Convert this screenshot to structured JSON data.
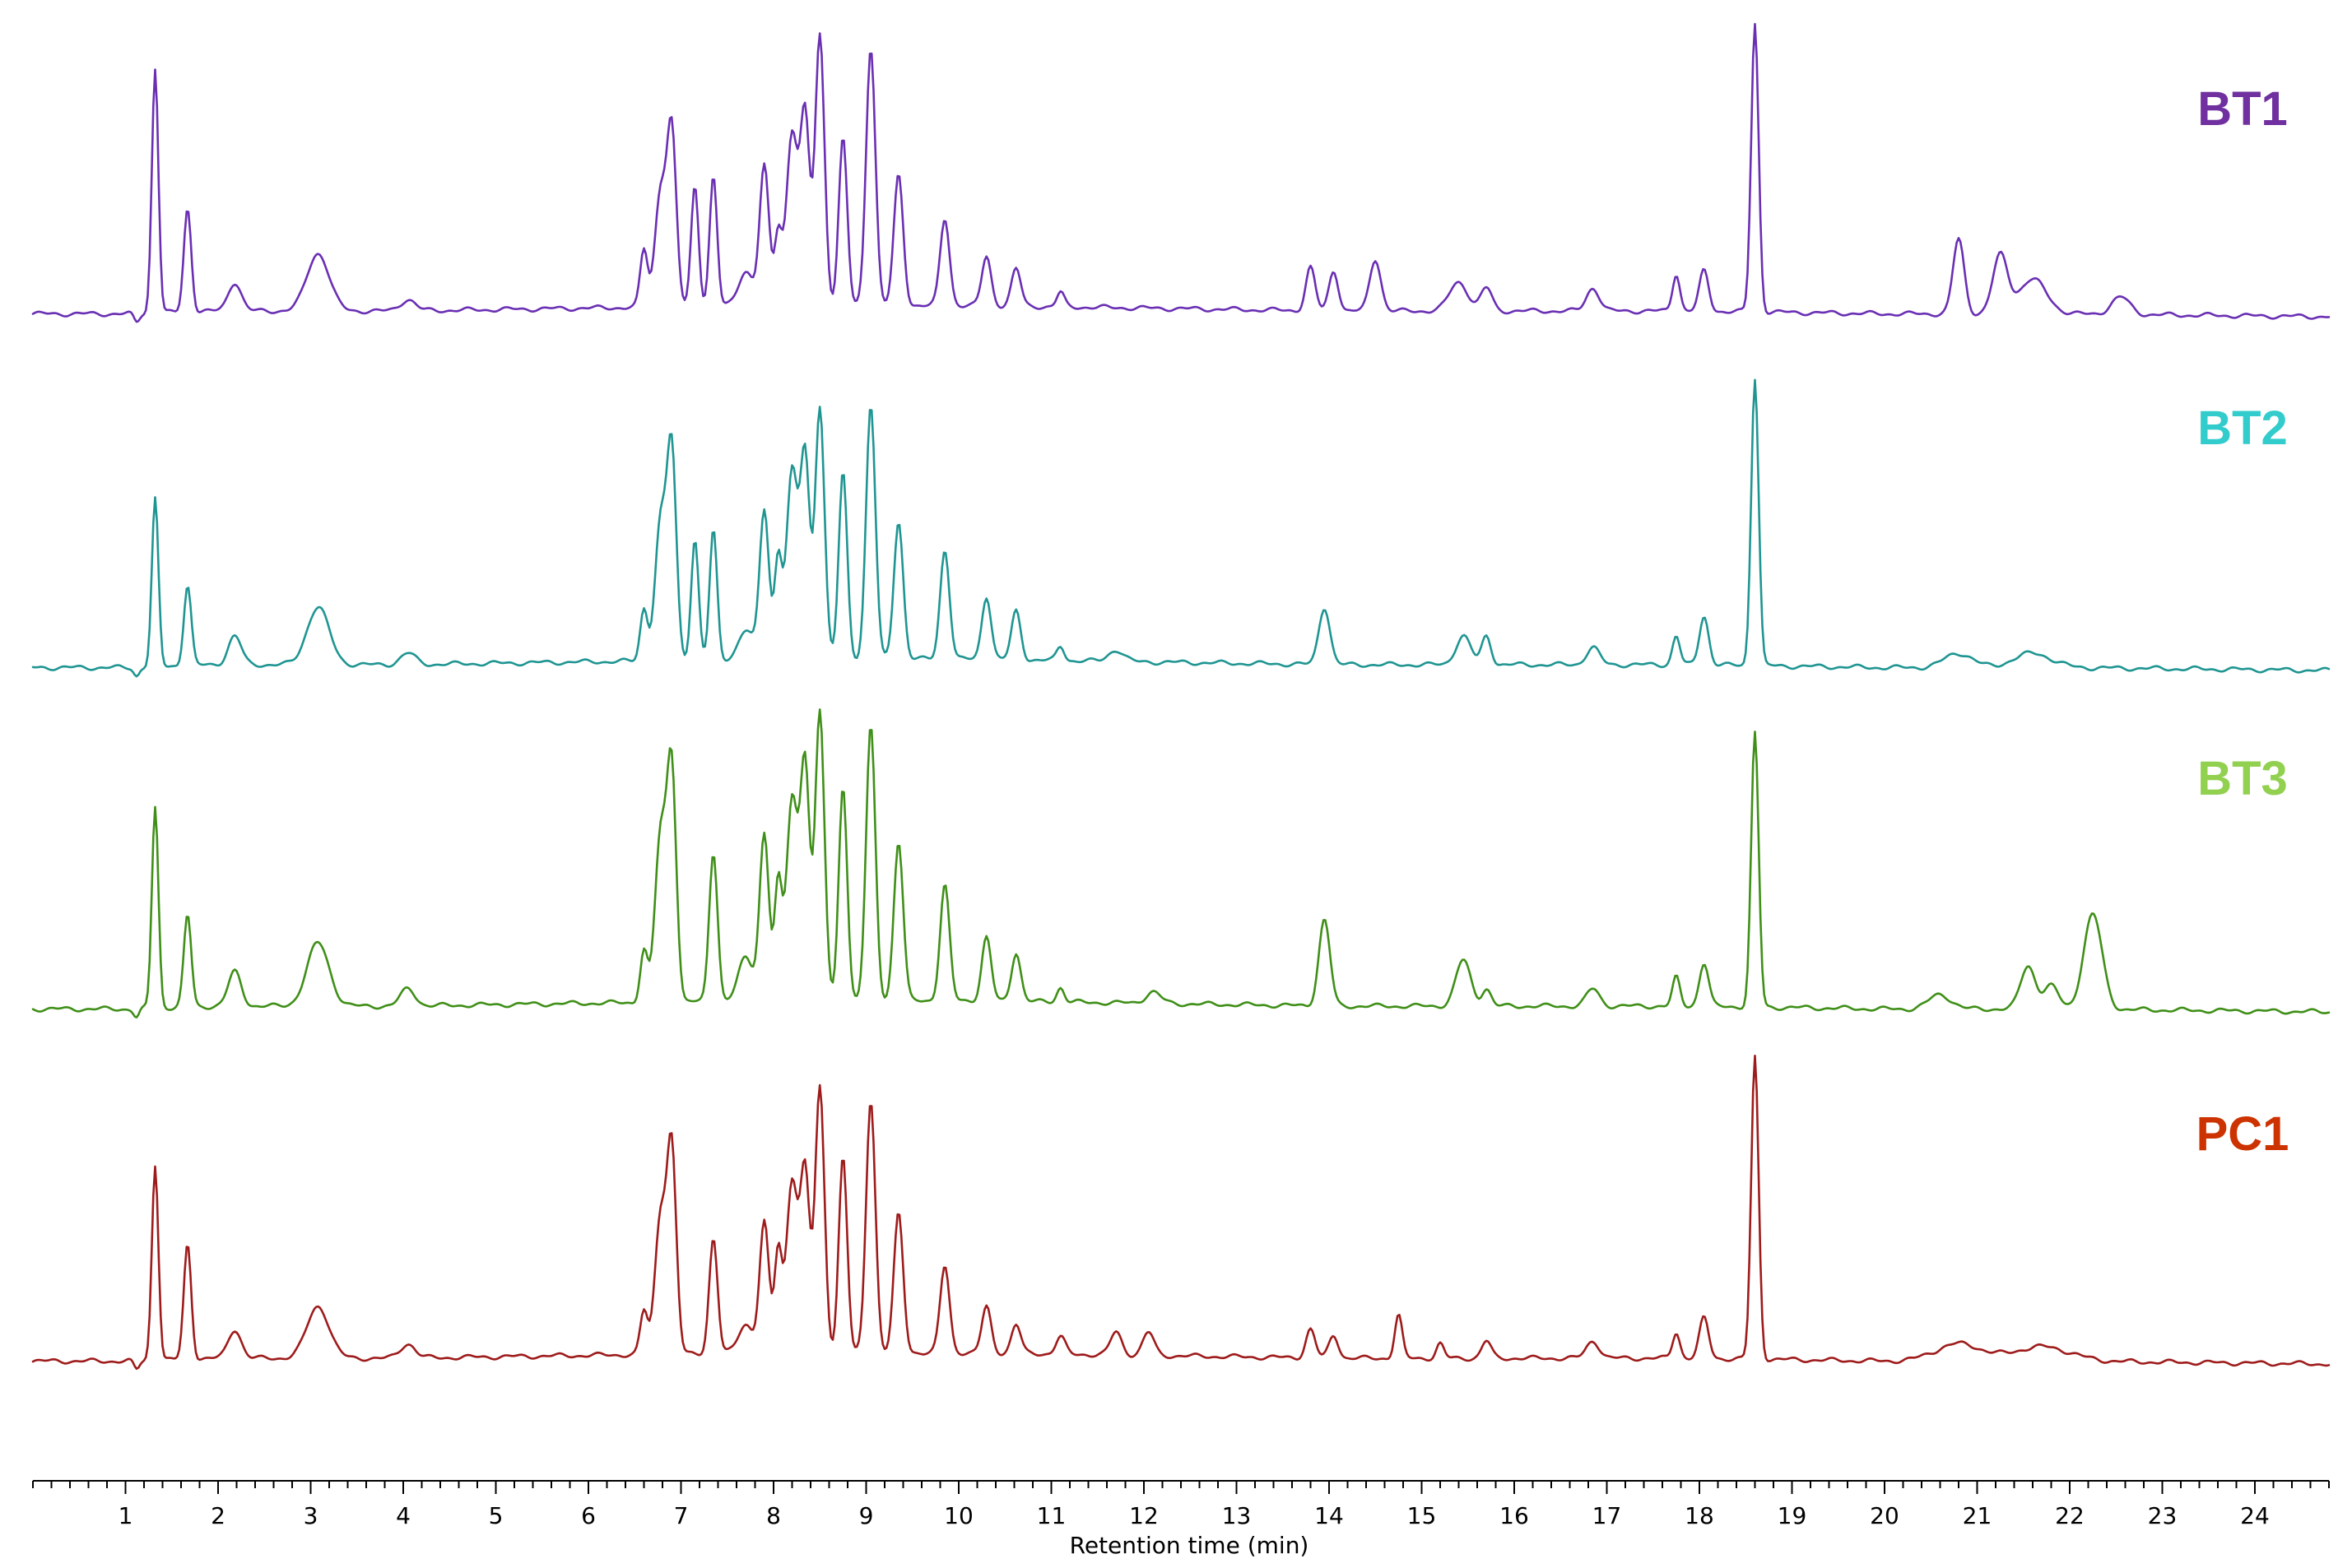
{
  "chart_data": {
    "type": "line",
    "xlabel": "Retention time (min)",
    "ylabel": "",
    "xlim": [
      0,
      24.8
    ],
    "ylim": [
      0,
      100
    ],
    "x_ticks": [
      1,
      2,
      3,
      4,
      5,
      6,
      7,
      8,
      9,
      10,
      11,
      12,
      13,
      14,
      15,
      16,
      17,
      18,
      19,
      20,
      21,
      22,
      23,
      24
    ],
    "minor_tick_step": 0.2,
    "grid": false,
    "legend": "series labels at top-right of each trace",
    "baseline": [
      [
        0,
        3
      ],
      [
        1,
        3
      ],
      [
        2,
        4
      ],
      [
        4,
        4
      ],
      [
        6,
        5
      ],
      [
        8,
        6
      ],
      [
        10,
        6
      ],
      [
        12,
        5
      ],
      [
        14,
        4
      ],
      [
        16,
        4
      ],
      [
        18,
        4
      ],
      [
        20,
        3
      ],
      [
        22,
        3
      ],
      [
        24.8,
        2
      ]
    ],
    "series": [
      {
        "name": "BT1",
        "color": "#6a2fb3",
        "label_color": "#7030a0",
        "peaks": [
          [
            1.32,
            85,
            0.035
          ],
          [
            1.67,
            36,
            0.04
          ],
          [
            2.18,
            10,
            0.07
          ],
          [
            3.08,
            20,
            0.12
          ],
          [
            4.05,
            4,
            0.08
          ],
          [
            6.6,
            20,
            0.04
          ],
          [
            6.78,
            40,
            0.06
          ],
          [
            6.9,
            60,
            0.05
          ],
          [
            7.15,
            42,
            0.04
          ],
          [
            7.35,
            45,
            0.04
          ],
          [
            7.7,
            12,
            0.08
          ],
          [
            7.9,
            48,
            0.05
          ],
          [
            8.05,
            25,
            0.04
          ],
          [
            8.2,
            60,
            0.06
          ],
          [
            8.34,
            65,
            0.05
          ],
          [
            8.5,
            94,
            0.05
          ],
          [
            8.75,
            58,
            0.045
          ],
          [
            9.05,
            90,
            0.05
          ],
          [
            9.35,
            45,
            0.05
          ],
          [
            9.85,
            30,
            0.05
          ],
          [
            10.3,
            17,
            0.05
          ],
          [
            10.62,
            13,
            0.05
          ],
          [
            11.1,
            5,
            0.04
          ],
          [
            13.8,
            15,
            0.05
          ],
          [
            14.05,
            14,
            0.05
          ],
          [
            14.5,
            18,
            0.06
          ],
          [
            15.4,
            10,
            0.1
          ],
          [
            15.7,
            8,
            0.06
          ],
          [
            16.85,
            8,
            0.07
          ],
          [
            17.75,
            13,
            0.04
          ],
          [
            18.05,
            14,
            0.05
          ],
          [
            18.6,
            100,
            0.04
          ],
          [
            20.8,
            26,
            0.06
          ],
          [
            21.25,
            20,
            0.08
          ],
          [
            21.6,
            12,
            0.15
          ],
          [
            22.55,
            6,
            0.1
          ]
        ],
        "label_text": "BT1"
      },
      {
        "name": "BT2",
        "color": "#1f9592",
        "label_color": "#33cccc",
        "peaks": [
          [
            1.32,
            58,
            0.035
          ],
          [
            1.67,
            28,
            0.04
          ],
          [
            2.18,
            10,
            0.07
          ],
          [
            3.08,
            20,
            0.12
          ],
          [
            4.05,
            4,
            0.08
          ],
          [
            6.6,
            18,
            0.04
          ],
          [
            6.78,
            48,
            0.06
          ],
          [
            6.9,
            72,
            0.05
          ],
          [
            7.15,
            42,
            0.04
          ],
          [
            7.35,
            45,
            0.04
          ],
          [
            7.7,
            10,
            0.08
          ],
          [
            7.9,
            52,
            0.05
          ],
          [
            8.05,
            35,
            0.04
          ],
          [
            8.2,
            65,
            0.06
          ],
          [
            8.34,
            70,
            0.05
          ],
          [
            8.5,
            88,
            0.05
          ],
          [
            8.75,
            65,
            0.045
          ],
          [
            9.05,
            88,
            0.05
          ],
          [
            9.35,
            48,
            0.05
          ],
          [
            9.85,
            38,
            0.05
          ],
          [
            10.3,
            22,
            0.05
          ],
          [
            10.62,
            17,
            0.05
          ],
          [
            11.1,
            5,
            0.04
          ],
          [
            11.7,
            4,
            0.08
          ],
          [
            13.95,
            20,
            0.06
          ],
          [
            15.45,
            10,
            0.08
          ],
          [
            15.7,
            10,
            0.05
          ],
          [
            16.85,
            6,
            0.07
          ],
          [
            17.75,
            10,
            0.04
          ],
          [
            18.05,
            17,
            0.05
          ],
          [
            18.6,
            100,
            0.04
          ],
          [
            20.8,
            5,
            0.15
          ],
          [
            21.6,
            5,
            0.2
          ]
        ],
        "label_text": "BT2"
      },
      {
        "name": "BT3",
        "color": "#3f8f18",
        "label_color": "#92d050",
        "peaks": [
          [
            1.32,
            70,
            0.035
          ],
          [
            1.67,
            32,
            0.04
          ],
          [
            2.18,
            12,
            0.07
          ],
          [
            3.08,
            22,
            0.12
          ],
          [
            4.05,
            6,
            0.08
          ],
          [
            6.6,
            18,
            0.04
          ],
          [
            6.78,
            58,
            0.06
          ],
          [
            6.9,
            80,
            0.05
          ],
          [
            7.35,
            52,
            0.045
          ],
          [
            7.7,
            15,
            0.08
          ],
          [
            7.9,
            58,
            0.05
          ],
          [
            8.05,
            40,
            0.04
          ],
          [
            8.2,
            70,
            0.06
          ],
          [
            8.34,
            82,
            0.05
          ],
          [
            8.5,
            100,
            0.05
          ],
          [
            8.75,
            75,
            0.045
          ],
          [
            9.05,
            95,
            0.05
          ],
          [
            9.35,
            55,
            0.05
          ],
          [
            9.85,
            40,
            0.05
          ],
          [
            10.3,
            22,
            0.05
          ],
          [
            10.62,
            17,
            0.05
          ],
          [
            11.1,
            5,
            0.04
          ],
          [
            12.1,
            4,
            0.08
          ],
          [
            13.95,
            30,
            0.06
          ],
          [
            15.45,
            16,
            0.08
          ],
          [
            15.7,
            6,
            0.05
          ],
          [
            16.85,
            6,
            0.07
          ],
          [
            17.75,
            10,
            0.04
          ],
          [
            18.05,
            15,
            0.05
          ],
          [
            18.6,
            95,
            0.04
          ],
          [
            20.6,
            5,
            0.12
          ],
          [
            21.55,
            15,
            0.08
          ],
          [
            21.8,
            8,
            0.08
          ],
          [
            22.25,
            33,
            0.1
          ]
        ],
        "label_text": "BT3"
      },
      {
        "name": "PC1",
        "color": "#9e1b1b",
        "label_color": "#cc3300",
        "peaks": [
          [
            1.32,
            68,
            0.035
          ],
          [
            1.67,
            40,
            0.04
          ],
          [
            2.18,
            10,
            0.07
          ],
          [
            3.08,
            18,
            0.12
          ],
          [
            4.05,
            5,
            0.08
          ],
          [
            6.6,
            15,
            0.04
          ],
          [
            6.78,
            48,
            0.06
          ],
          [
            6.9,
            70,
            0.05
          ],
          [
            7.35,
            40,
            0.045
          ],
          [
            7.7,
            10,
            0.08
          ],
          [
            7.9,
            45,
            0.05
          ],
          [
            8.05,
            35,
            0.04
          ],
          [
            8.2,
            60,
            0.06
          ],
          [
            8.34,
            62,
            0.05
          ],
          [
            8.5,
            92,
            0.05
          ],
          [
            8.75,
            68,
            0.045
          ],
          [
            9.05,
            88,
            0.05
          ],
          [
            9.35,
            48,
            0.05
          ],
          [
            9.85,
            30,
            0.05
          ],
          [
            10.3,
            16,
            0.05
          ],
          [
            10.62,
            10,
            0.05
          ],
          [
            11.1,
            6,
            0.05
          ],
          [
            11.7,
            8,
            0.06
          ],
          [
            12.05,
            8,
            0.06
          ],
          [
            13.8,
            10,
            0.05
          ],
          [
            14.05,
            8,
            0.05
          ],
          [
            14.75,
            15,
            0.04
          ],
          [
            15.2,
            5,
            0.04
          ],
          [
            15.7,
            6,
            0.05
          ],
          [
            16.85,
            6,
            0.07
          ],
          [
            17.75,
            9,
            0.04
          ],
          [
            18.05,
            14,
            0.05
          ],
          [
            18.6,
            105,
            0.04
          ],
          [
            20.8,
            6,
            0.25
          ],
          [
            21.7,
            5,
            0.3
          ]
        ],
        "label_text": "PC1"
      }
    ]
  }
}
